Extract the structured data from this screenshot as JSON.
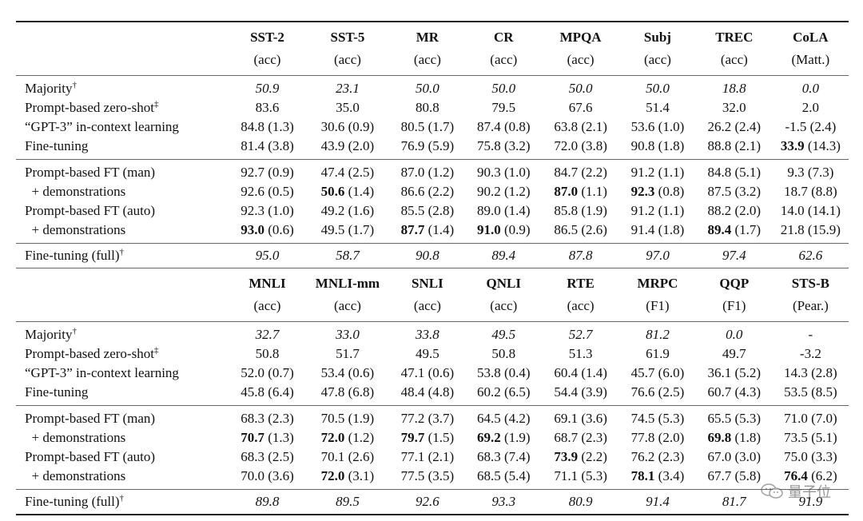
{
  "part1": {
    "columns": [
      {
        "name": "SST-2",
        "metric": "(acc)"
      },
      {
        "name": "SST-5",
        "metric": "(acc)"
      },
      {
        "name": "MR",
        "metric": "(acc)"
      },
      {
        "name": "CR",
        "metric": "(acc)"
      },
      {
        "name": "MPQA",
        "metric": "(acc)"
      },
      {
        "name": "Subj",
        "metric": "(acc)"
      },
      {
        "name": "TREC",
        "metric": "(acc)"
      },
      {
        "name": "CoLA",
        "metric": "(Matt.)"
      }
    ],
    "rows": [
      {
        "label": "Majority",
        "sup": "†",
        "italic": true,
        "cells": [
          {
            "v": "50.9"
          },
          {
            "v": "23.1"
          },
          {
            "v": "50.0"
          },
          {
            "v": "50.0"
          },
          {
            "v": "50.0"
          },
          {
            "v": "50.0"
          },
          {
            "v": "18.8"
          },
          {
            "v": "0.0"
          }
        ]
      },
      {
        "label": "Prompt-based zero-shot",
        "sup": "‡",
        "italic": false,
        "cells": [
          {
            "v": "83.6"
          },
          {
            "v": "35.0"
          },
          {
            "v": "80.8"
          },
          {
            "v": "79.5"
          },
          {
            "v": "67.6"
          },
          {
            "v": "51.4"
          },
          {
            "v": "32.0"
          },
          {
            "v": "2.0"
          }
        ]
      },
      {
        "label": "“GPT-3” in-context learning",
        "sup": "",
        "italic": false,
        "cells": [
          {
            "v": "84.8",
            "sd": " (1.3)"
          },
          {
            "v": "30.6",
            "sd": " (0.9)"
          },
          {
            "v": "80.5",
            "sd": " (1.7)"
          },
          {
            "v": "87.4",
            "sd": " (0.8)"
          },
          {
            "v": "63.8",
            "sd": " (2.1)"
          },
          {
            "v": "53.6",
            "sd": " (1.0)"
          },
          {
            "v": "26.2",
            "sd": " (2.4)"
          },
          {
            "v": "-1.5",
            "sd": " (2.4)"
          }
        ]
      },
      {
        "label": "Fine-tuning",
        "sup": "",
        "italic": false,
        "cells": [
          {
            "v": "81.4",
            "sd": " (3.8)"
          },
          {
            "v": "43.9",
            "sd": " (2.0)"
          },
          {
            "v": "76.9",
            "sd": " (5.9)"
          },
          {
            "v": "75.8",
            "sd": " (3.2)"
          },
          {
            "v": "72.0",
            "sd": " (3.8)"
          },
          {
            "v": "90.8",
            "sd": " (1.8)"
          },
          {
            "v": "88.8",
            "sd": " (2.1)"
          },
          {
            "v": "33.9",
            "sd": " (14.3)",
            "bold": true
          }
        ]
      },
      {
        "label": "Prompt-based FT (man)",
        "sup": "",
        "italic": false,
        "cells": [
          {
            "v": "92.7",
            "sd": " (0.9)"
          },
          {
            "v": "47.4",
            "sd": " (2.5)"
          },
          {
            "v": "87.0",
            "sd": " (1.2)"
          },
          {
            "v": "90.3",
            "sd": " (1.0)"
          },
          {
            "v": "84.7",
            "sd": " (2.2)"
          },
          {
            "v": "91.2",
            "sd": " (1.1)"
          },
          {
            "v": "84.8",
            "sd": " (5.1)"
          },
          {
            "v": "9.3",
            "sd": " (7.3)"
          }
        ]
      },
      {
        "label": "  + demonstrations",
        "sup": "",
        "italic": false,
        "cells": [
          {
            "v": "92.6",
            "sd": " (0.5)"
          },
          {
            "v": "50.6",
            "sd": " (1.4)",
            "bold": true
          },
          {
            "v": "86.6",
            "sd": " (2.2)"
          },
          {
            "v": "90.2",
            "sd": " (1.2)"
          },
          {
            "v": "87.0",
            "sd": " (1.1)",
            "bold": true
          },
          {
            "v": "92.3",
            "sd": " (0.8)",
            "bold": true
          },
          {
            "v": "87.5",
            "sd": " (3.2)"
          },
          {
            "v": "18.7",
            "sd": " (8.8)"
          }
        ]
      },
      {
        "label": "Prompt-based FT (auto)",
        "sup": "",
        "italic": false,
        "cells": [
          {
            "v": "92.3",
            "sd": " (1.0)"
          },
          {
            "v": "49.2",
            "sd": " (1.6)"
          },
          {
            "v": "85.5",
            "sd": " (2.8)"
          },
          {
            "v": "89.0",
            "sd": " (1.4)"
          },
          {
            "v": "85.8",
            "sd": " (1.9)"
          },
          {
            "v": "91.2",
            "sd": " (1.1)"
          },
          {
            "v": "88.2",
            "sd": " (2.0)"
          },
          {
            "v": "14.0",
            "sd": " (14.1)"
          }
        ]
      },
      {
        "label": "  + demonstrations",
        "sup": "",
        "italic": false,
        "cells": [
          {
            "v": "93.0",
            "sd": " (0.6)",
            "bold": true
          },
          {
            "v": "49.5",
            "sd": " (1.7)"
          },
          {
            "v": "87.7",
            "sd": " (1.4)",
            "bold": true
          },
          {
            "v": "91.0",
            "sd": " (0.9)",
            "bold": true
          },
          {
            "v": "86.5",
            "sd": " (2.6)"
          },
          {
            "v": "91.4",
            "sd": " (1.8)"
          },
          {
            "v": "89.4",
            "sd": " (1.7)",
            "bold": true
          },
          {
            "v": "21.8",
            "sd": " (15.9)"
          }
        ]
      }
    ],
    "full": {
      "label": "Fine-tuning (full)",
      "sup": "†",
      "italic": true,
      "cells": [
        {
          "v": "95.0"
        },
        {
          "v": "58.7"
        },
        {
          "v": "90.8"
        },
        {
          "v": "89.4"
        },
        {
          "v": "87.8"
        },
        {
          "v": "97.0"
        },
        {
          "v": "97.4"
        },
        {
          "v": "62.6"
        }
      ]
    }
  },
  "part2": {
    "columns": [
      {
        "name": "MNLI",
        "metric": "(acc)"
      },
      {
        "name": "MNLI-mm",
        "metric": "(acc)"
      },
      {
        "name": "SNLI",
        "metric": "(acc)"
      },
      {
        "name": "QNLI",
        "metric": "(acc)"
      },
      {
        "name": "RTE",
        "metric": "(acc)"
      },
      {
        "name": "MRPC",
        "metric": "(F1)"
      },
      {
        "name": "QQP",
        "metric": "(F1)"
      },
      {
        "name": "STS-B",
        "metric": "(Pear.)"
      }
    ],
    "rows": [
      {
        "label": "Majority",
        "sup": "†",
        "italic": true,
        "cells": [
          {
            "v": "32.7"
          },
          {
            "v": "33.0"
          },
          {
            "v": "33.8"
          },
          {
            "v": "49.5"
          },
          {
            "v": "52.7"
          },
          {
            "v": "81.2"
          },
          {
            "v": "0.0"
          },
          {
            "v": "-"
          }
        ]
      },
      {
        "label": "Prompt-based zero-shot",
        "sup": "‡",
        "italic": false,
        "cells": [
          {
            "v": "50.8"
          },
          {
            "v": "51.7"
          },
          {
            "v": "49.5"
          },
          {
            "v": "50.8"
          },
          {
            "v": "51.3"
          },
          {
            "v": "61.9"
          },
          {
            "v": "49.7"
          },
          {
            "v": "-3.2"
          }
        ]
      },
      {
        "label": "“GPT-3” in-context learning",
        "sup": "",
        "italic": false,
        "cells": [
          {
            "v": "52.0",
            "sd": " (0.7)"
          },
          {
            "v": "53.4",
            "sd": " (0.6)"
          },
          {
            "v": "47.1",
            "sd": " (0.6)"
          },
          {
            "v": "53.8",
            "sd": " (0.4)"
          },
          {
            "v": "60.4",
            "sd": " (1.4)"
          },
          {
            "v": "45.7",
            "sd": " (6.0)"
          },
          {
            "v": "36.1",
            "sd": " (5.2)"
          },
          {
            "v": "14.3",
            "sd": " (2.8)"
          }
        ]
      },
      {
        "label": "Fine-tuning",
        "sup": "",
        "italic": false,
        "cells": [
          {
            "v": "45.8",
            "sd": " (6.4)"
          },
          {
            "v": "47.8",
            "sd": " (6.8)"
          },
          {
            "v": "48.4",
            "sd": " (4.8)"
          },
          {
            "v": "60.2",
            "sd": " (6.5)"
          },
          {
            "v": "54.4",
            "sd": " (3.9)"
          },
          {
            "v": "76.6",
            "sd": " (2.5)"
          },
          {
            "v": "60.7",
            "sd": " (4.3)"
          },
          {
            "v": "53.5",
            "sd": " (8.5)"
          }
        ]
      },
      {
        "label": "Prompt-based FT (man)",
        "sup": "",
        "italic": false,
        "cells": [
          {
            "v": "68.3",
            "sd": " (2.3)"
          },
          {
            "v": "70.5",
            "sd": " (1.9)"
          },
          {
            "v": "77.2",
            "sd": " (3.7)"
          },
          {
            "v": "64.5",
            "sd": " (4.2)"
          },
          {
            "v": "69.1",
            "sd": " (3.6)"
          },
          {
            "v": "74.5",
            "sd": " (5.3)"
          },
          {
            "v": "65.5",
            "sd": " (5.3)"
          },
          {
            "v": "71.0",
            "sd": " (7.0)"
          }
        ]
      },
      {
        "label": "  + demonstrations",
        "sup": "",
        "italic": false,
        "cells": [
          {
            "v": "70.7",
            "sd": " (1.3)",
            "bold": true
          },
          {
            "v": "72.0",
            "sd": " (1.2)",
            "bold": true
          },
          {
            "v": "79.7",
            "sd": " (1.5)",
            "bold": true
          },
          {
            "v": "69.2",
            "sd": " (1.9)",
            "bold": true
          },
          {
            "v": "68.7",
            "sd": " (2.3)"
          },
          {
            "v": "77.8",
            "sd": " (2.0)"
          },
          {
            "v": "69.8",
            "sd": " (1.8)",
            "bold": true
          },
          {
            "v": "73.5",
            "sd": " (5.1)"
          }
        ]
      },
      {
        "label": "Prompt-based FT (auto)",
        "sup": "",
        "italic": false,
        "cells": [
          {
            "v": "68.3",
            "sd": " (2.5)"
          },
          {
            "v": "70.1",
            "sd": " (2.6)"
          },
          {
            "v": "77.1",
            "sd": " (2.1)"
          },
          {
            "v": "68.3",
            "sd": " (7.4)"
          },
          {
            "v": "73.9",
            "sd": " (2.2)",
            "bold": true
          },
          {
            "v": "76.2",
            "sd": " (2.3)"
          },
          {
            "v": "67.0",
            "sd": " (3.0)"
          },
          {
            "v": "75.0",
            "sd": " (3.3)"
          }
        ]
      },
      {
        "label": "  + demonstrations",
        "sup": "",
        "italic": false,
        "cells": [
          {
            "v": "70.0",
            "sd": " (3.6)"
          },
          {
            "v": "72.0",
            "sd": " (3.1)",
            "bold": true
          },
          {
            "v": "77.5",
            "sd": " (3.5)"
          },
          {
            "v": "68.5",
            "sd": " (5.4)"
          },
          {
            "v": "71.1",
            "sd": " (5.3)"
          },
          {
            "v": "78.1",
            "sd": " (3.4)",
            "bold": true
          },
          {
            "v": "67.7",
            "sd": " (5.8)"
          },
          {
            "v": "76.4",
            "sd": " (6.2)",
            "bold": true
          }
        ]
      }
    ],
    "full": {
      "label": "Fine-tuning (full)",
      "sup": "†",
      "italic": true,
      "cells": [
        {
          "v": "89.8"
        },
        {
          "v": "89.5"
        },
        {
          "v": "92.6"
        },
        {
          "v": "93.3"
        },
        {
          "v": "80.9"
        },
        {
          "v": "91.4"
        },
        {
          "v": "81.7"
        },
        {
          "v": "91.9"
        }
      ]
    }
  },
  "watermark": {
    "text": "量子位",
    "icon": "wechat-icon"
  }
}
